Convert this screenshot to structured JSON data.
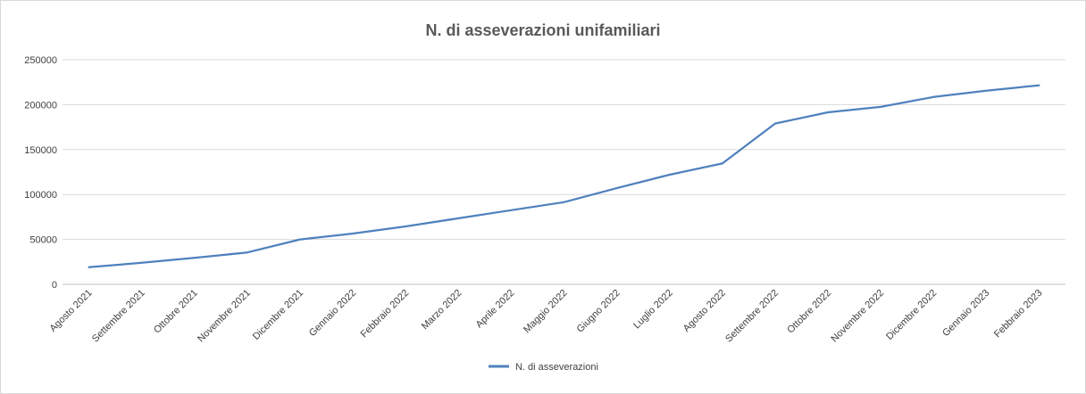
{
  "chart_data": {
    "type": "line",
    "title": "N. di asseverazioni unifamiliari",
    "categories": [
      "Agosto 2021",
      "Settembre 2021",
      "Ottobre 2021",
      "Novembre 2021",
      "Dicembre 2021",
      "Gennaio 2022",
      "Febbraio 2022",
      "Marzo 2022",
      "Aprile 2022",
      "Maggio 2022",
      "Giugno 2022",
      "Luglio 2022",
      "Agosto 2022",
      "Settembre 2022",
      "Ottobre 2022",
      "Novembre 2022",
      "Dicembre 2022",
      "Gennaio 2023",
      "Febbraio 2023"
    ],
    "series": [
      {
        "name": "N. di asseverazioni",
        "color": "#4f81bd",
        "values": [
          19000,
          24000,
          29500,
          35500,
          50000,
          56500,
          64500,
          73500,
          82500,
          91500,
          107000,
          122000,
          134500,
          179000,
          191500,
          197500,
          208500,
          215500,
          221500
        ]
      }
    ],
    "ylim": [
      0,
      250000
    ],
    "yticks": [
      "0",
      "50000",
      "100000",
      "150000",
      "200000",
      "250000"
    ],
    "ytick_values": [
      0,
      50000,
      100000,
      150000,
      200000,
      250000
    ],
    "grid": true,
    "legend_position": "bottom"
  }
}
